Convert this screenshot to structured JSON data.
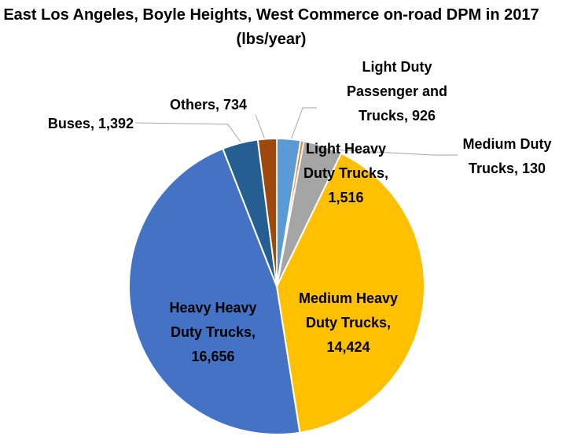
{
  "chart_data": {
    "type": "pie",
    "title": "East Los Angeles, Boyle Heights, West Commerce on-road DPM in 2017 (lbs/year)",
    "categories": [
      "Light Duty Passenger and Trucks",
      "Medium Duty Trucks",
      "Light Heavy Duty Trucks",
      "Medium Heavy Duty Trucks",
      "Heavy Heavy Duty Trucks",
      "Buses",
      "Others"
    ],
    "values": [
      926,
      130,
      1516,
      14424,
      16656,
      1392,
      734
    ],
    "value_labels": [
      "926",
      "130",
      "1,516",
      "14,424",
      "16,656",
      "1,392",
      "734"
    ],
    "colors": [
      "#5b9bd5",
      "#ed7d31",
      "#a5a5a5",
      "#ffc000",
      "#4472c4",
      "#255e91",
      "#9e480e"
    ]
  }
}
